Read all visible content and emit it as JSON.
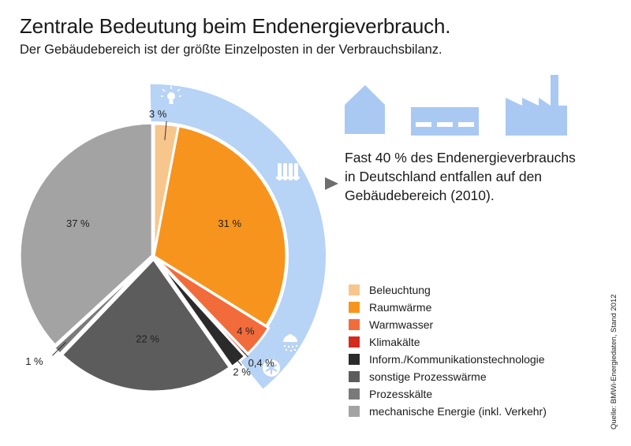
{
  "title": "Zentrale Bedeutung beim Endenergieverbrauch.",
  "subtitle": "Der Gebäudebereich ist der größte Einzelposten in der Verbrauchsbilanz.",
  "note_lines": [
    "Fast 40 % des Endenergieverbrauchs",
    "in Deutschland entfallen auf den",
    "Gebäudebereich (2010)."
  ],
  "source": "Quelle: BMWi-Energiedaten, Stand 2012",
  "icons": [
    "house-icon",
    "office-building-icon",
    "factory-icon",
    "lightbulb-icon",
    "radiator-icon",
    "shower-icon",
    "snowflake-icon"
  ],
  "colors": {
    "building_band": "#b7d3f5",
    "icon": "#a9c9f2"
  },
  "chart_data": {
    "type": "pie",
    "title": "",
    "start": "12 o'clock, clockwise",
    "series": [
      {
        "name": "Beleuchtung",
        "value": 3,
        "label": "3 %",
        "color": "#f7c68d"
      },
      {
        "name": "Raumwärme",
        "value": 31,
        "label": "31 %",
        "color": "#f7941d"
      },
      {
        "name": "Warmwasser",
        "value": 4,
        "label": "4 %",
        "color": "#f26b3a"
      },
      {
        "name": "Klimakälte",
        "value": 0.4,
        "label": "0,4 %",
        "color": "#d42a1e"
      },
      {
        "name": "Inform./Kommunikationstechnologie",
        "value": 2,
        "label": "2 %",
        "color": "#2b2b2b"
      },
      {
        "name": "sonstige Prozesswärme",
        "value": 22,
        "label": "22 %",
        "color": "#5c5c5c"
      },
      {
        "name": "Prozesskälte",
        "value": 1,
        "label": "1 %",
        "color": "#7a7a7a"
      },
      {
        "name": "mechanische Energie (inkl. Verkehr)",
        "value": 37,
        "label": "37 %",
        "color": "#a3a3a3"
      }
    ],
    "highlight": {
      "label": "Gebäudebereich",
      "slices": [
        "Beleuchtung",
        "Raumwärme",
        "Warmwasser",
        "Klimakälte"
      ]
    },
    "legend": "right"
  }
}
